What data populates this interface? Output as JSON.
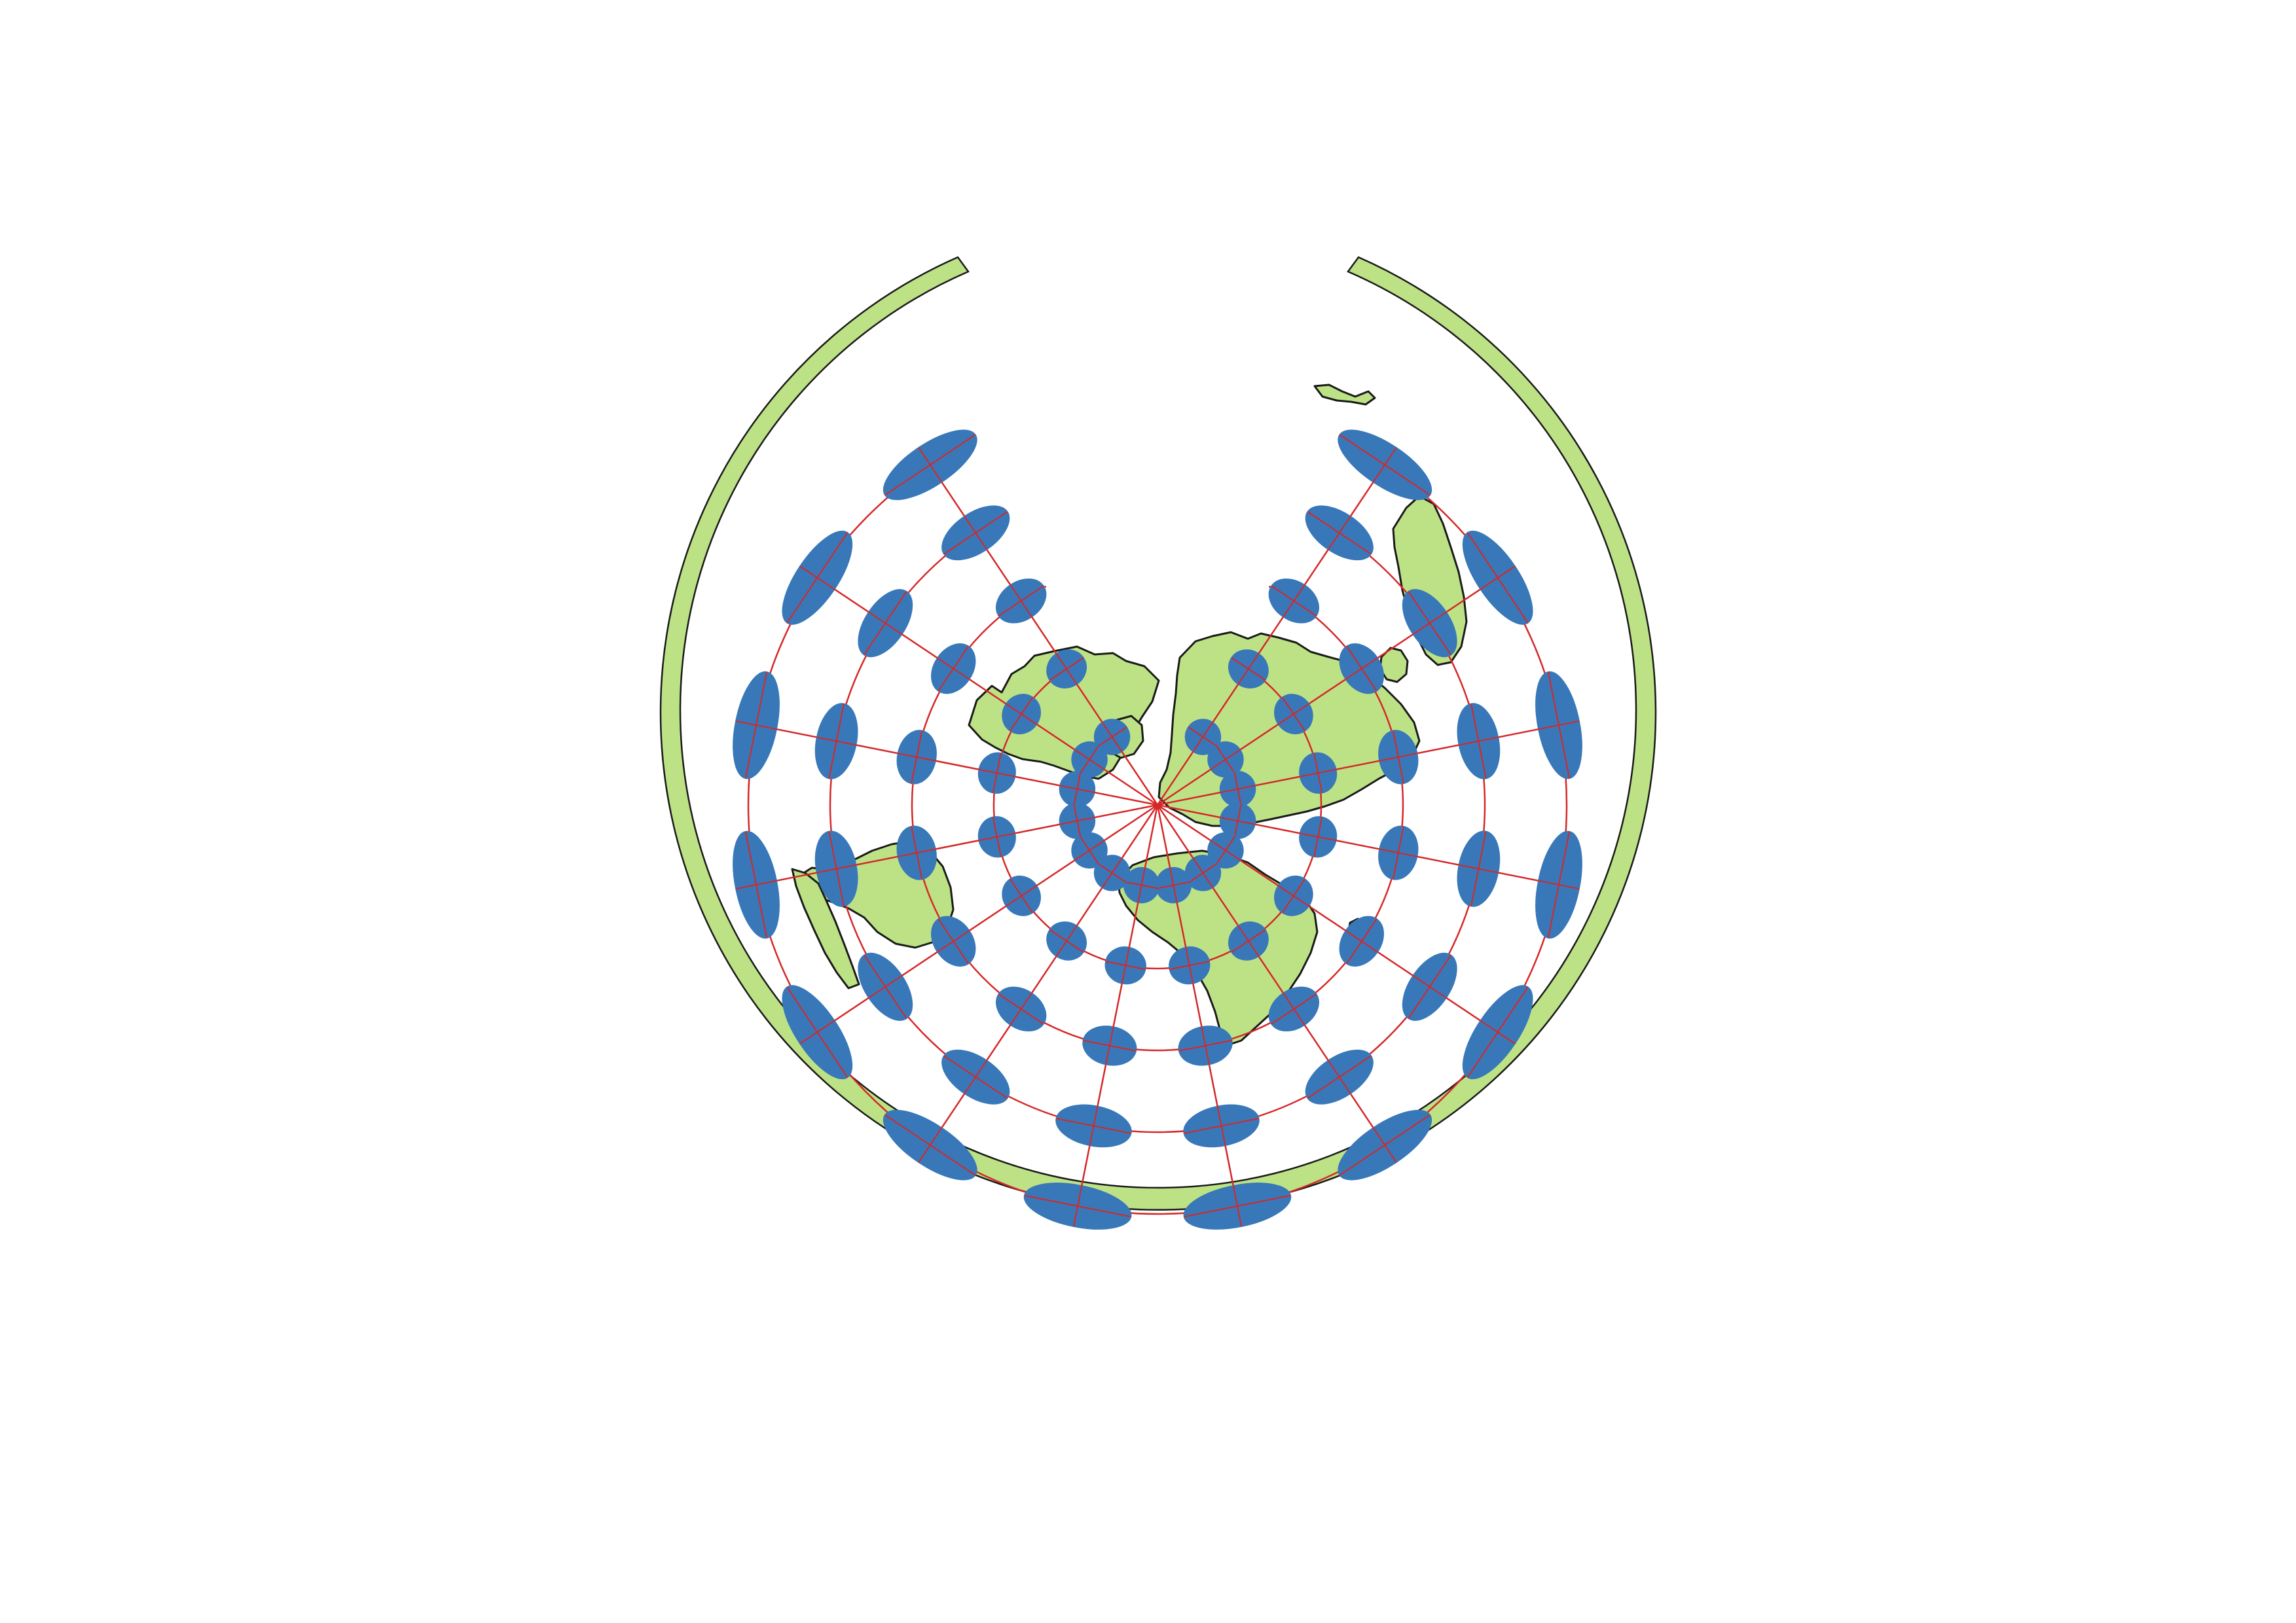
{
  "map": {
    "projection_kind": "oblique azimuthal equidistant with Tissot indicatrices",
    "colors": {
      "background": "#ffffff",
      "land_fill": "#bde286",
      "coastline": "#1a1a1a",
      "graticule": "#d62728",
      "indicatrix": "#3878b8"
    },
    "graticule": {
      "ring_count": 5,
      "spoke_count": 16
    },
    "indicatrix_layer": "tissot-indicatrices"
  }
}
